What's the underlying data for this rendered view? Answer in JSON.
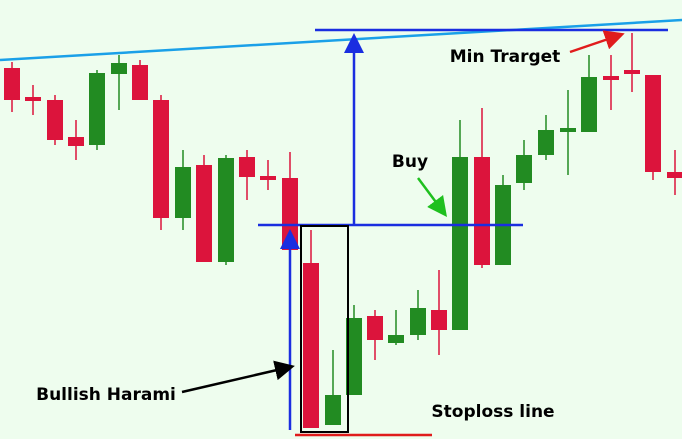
{
  "annotations": {
    "min_target": "Min Trarget",
    "buy": "Buy",
    "pattern": "Bullish Harami",
    "stoploss": "Stoploss line"
  }
}
